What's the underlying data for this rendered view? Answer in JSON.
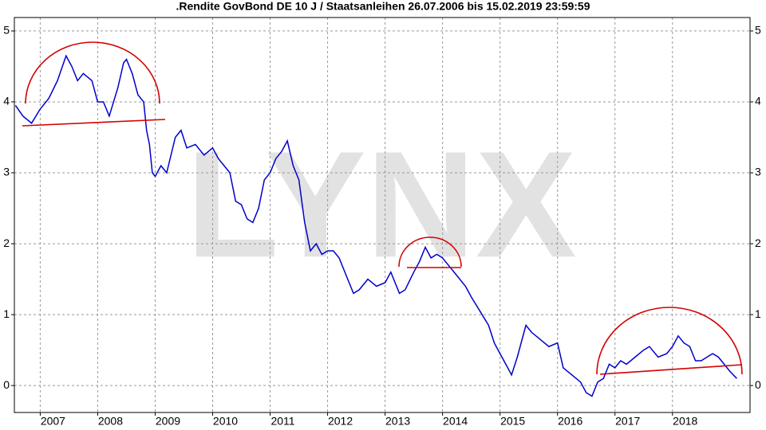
{
  "chart_data": {
    "type": "line",
    "title": ".Rendite GovBond DE 10 J / Staatsanleihen 26.07.2006 bis 15.02.2019 23:59:59",
    "watermark": "LYNX",
    "x": [
      2006.57,
      2006.7,
      2006.85,
      2007.0,
      2007.15,
      2007.3,
      2007.45,
      2007.55,
      2007.65,
      2007.75,
      2007.9,
      2008.0,
      2008.1,
      2008.2,
      2008.35,
      2008.45,
      2008.5,
      2008.6,
      2008.7,
      2008.8,
      2008.85,
      2008.9,
      2008.95,
      2009.0,
      2009.1,
      2009.2,
      2009.35,
      2009.45,
      2009.55,
      2009.7,
      2009.85,
      2010.0,
      2010.1,
      2010.2,
      2010.3,
      2010.4,
      2010.5,
      2010.6,
      2010.7,
      2010.8,
      2010.9,
      2011.0,
      2011.1,
      2011.2,
      2011.3,
      2011.4,
      2011.5,
      2011.6,
      2011.7,
      2011.8,
      2011.9,
      2012.0,
      2012.1,
      2012.2,
      2012.35,
      2012.45,
      2012.55,
      2012.7,
      2012.85,
      2013.0,
      2013.1,
      2013.25,
      2013.35,
      2013.5,
      2013.6,
      2013.7,
      2013.8,
      2013.9,
      2014.0,
      2014.1,
      2014.25,
      2014.4,
      2014.5,
      2014.65,
      2014.8,
      2014.9,
      2015.0,
      2015.1,
      2015.2,
      2015.3,
      2015.45,
      2015.55,
      2015.7,
      2015.85,
      2016.0,
      2016.1,
      2016.25,
      2016.4,
      2016.5,
      2016.6,
      2016.7,
      2016.8,
      2016.9,
      2017.0,
      2017.1,
      2017.2,
      2017.35,
      2017.5,
      2017.6,
      2017.75,
      2017.9,
      2018.0,
      2018.1,
      2018.2,
      2018.3,
      2018.4,
      2018.5,
      2018.6,
      2018.7,
      2018.8,
      2018.9,
      2019.0,
      2019.12
    ],
    "series": [
      {
        "name": "GovBond DE 10 J",
        "color": "#0000cc",
        "values": [
          3.95,
          3.8,
          3.7,
          3.9,
          4.05,
          4.3,
          4.65,
          4.5,
          4.3,
          4.4,
          4.3,
          4.0,
          4.0,
          3.8,
          4.2,
          4.55,
          4.6,
          4.4,
          4.1,
          4.0,
          3.6,
          3.4,
          3.0,
          2.95,
          3.1,
          3.0,
          3.5,
          3.6,
          3.35,
          3.4,
          3.25,
          3.35,
          3.2,
          3.1,
          3.0,
          2.6,
          2.55,
          2.35,
          2.3,
          2.5,
          2.9,
          3.0,
          3.2,
          3.3,
          3.45,
          3.1,
          2.9,
          2.3,
          1.9,
          2.0,
          1.85,
          1.9,
          1.9,
          1.8,
          1.5,
          1.3,
          1.35,
          1.5,
          1.4,
          1.45,
          1.6,
          1.3,
          1.35,
          1.6,
          1.75,
          1.95,
          1.8,
          1.85,
          1.8,
          1.7,
          1.55,
          1.4,
          1.25,
          1.05,
          0.85,
          0.6,
          0.45,
          0.3,
          0.15,
          0.4,
          0.85,
          0.75,
          0.65,
          0.55,
          0.6,
          0.25,
          0.15,
          0.05,
          -0.1,
          -0.15,
          0.05,
          0.1,
          0.3,
          0.25,
          0.35,
          0.3,
          0.4,
          0.5,
          0.55,
          0.4,
          0.45,
          0.55,
          0.7,
          0.6,
          0.55,
          0.35,
          0.35,
          0.4,
          0.45,
          0.4,
          0.3,
          0.2,
          0.1
        ]
      }
    ],
    "xlim": [
      2006.55,
      2019.35
    ],
    "xticks": [
      2007,
      2008,
      2009,
      2010,
      2011,
      2012,
      2013,
      2014,
      2015,
      2016,
      2017,
      2018
    ],
    "ylim": [
      -0.38,
      5.19
    ],
    "yticks": [
      0,
      1,
      2,
      3,
      4,
      5
    ],
    "y2lim": [
      -0.38,
      5.19
    ],
    "y2ticks": [
      0,
      1,
      2,
      3,
      4,
      5
    ],
    "grid": true
  }
}
